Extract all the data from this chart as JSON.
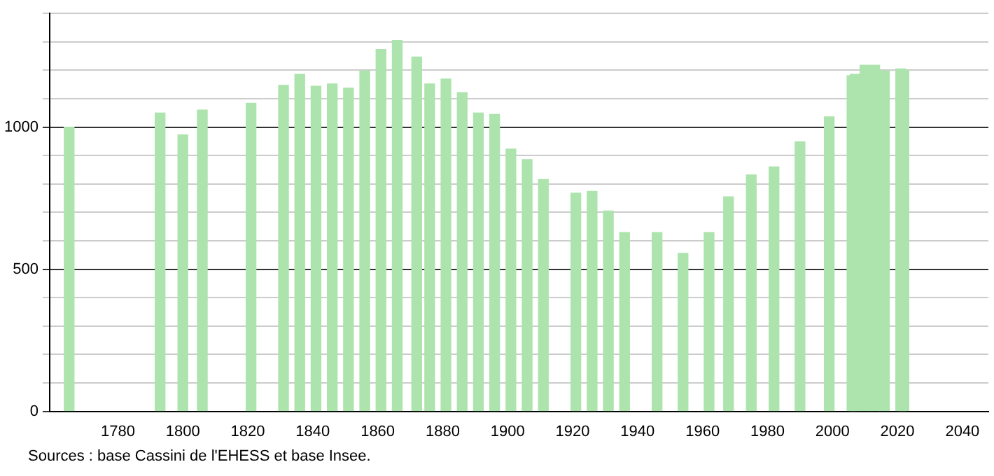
{
  "chart_data": {
    "type": "bar",
    "color": "#ade3ad",
    "x": [
      1765,
      1793,
      1800,
      1806,
      1821,
      1831,
      1836,
      1841,
      1846,
      1851,
      1856,
      1861,
      1866,
      1872,
      1876,
      1881,
      1886,
      1891,
      1896,
      1901,
      1906,
      1911,
      1921,
      1926,
      1931,
      1936,
      1946,
      1954,
      1962,
      1968,
      1975,
      1982,
      1990,
      1999,
      2006,
      2007,
      2010,
      2013,
      2016,
      2021,
      2022
    ],
    "values": [
      1000,
      1050,
      973,
      1060,
      1084,
      1147,
      1186,
      1144,
      1152,
      1137,
      1198,
      1273,
      1305,
      1247,
      1152,
      1169,
      1121,
      1050,
      1045,
      923,
      886,
      816,
      768,
      774,
      705,
      629,
      629,
      556,
      629,
      755,
      832,
      860,
      948,
      1036,
      1181,
      1186,
      1218,
      1218,
      1198,
      1205,
      1200
    ],
    "xlim": [
      1759,
      2048
    ],
    "xticks": [
      1780,
      1800,
      1820,
      1840,
      1860,
      1880,
      1900,
      1920,
      1940,
      1960,
      1980,
      2000,
      2020,
      2040
    ],
    "ylim": [
      0,
      1400
    ],
    "yticks": [
      0,
      {
        "value": 100,
        "label": null
      },
      {
        "value": 200,
        "label": null
      },
      {
        "value": 300,
        "label": null
      },
      {
        "value": 400,
        "label": null
      },
      500,
      {
        "value": 600,
        "label": null
      },
      {
        "value": 700,
        "label": null
      },
      {
        "value": 800,
        "label": null
      },
      {
        "value": 900,
        "label": null
      },
      1000,
      {
        "value": 1100,
        "label": null
      },
      {
        "value": 1200,
        "label": null
      },
      {
        "value": 1300,
        "label": null
      },
      {
        "value": 1400,
        "label": null
      }
    ],
    "grid": "y",
    "annotations": [
      "Sources : base Cassini de l'EHESS et base Insee."
    ]
  }
}
